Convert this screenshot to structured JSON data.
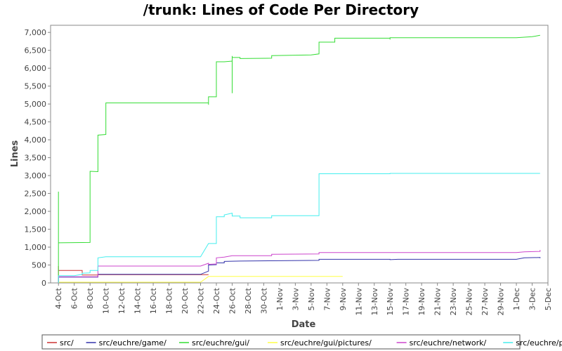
{
  "chart_data": {
    "type": "line",
    "title": "/trunk: Lines of Code Per Directory",
    "xlabel": "Date",
    "ylabel": "Lines",
    "ylim": [
      0,
      7200
    ],
    "xlim": [
      "2023-10-03",
      "2023-12-05"
    ],
    "x_ticks": [
      "4-Oct",
      "6-Oct",
      "8-Oct",
      "10-Oct",
      "12-Oct",
      "14-Oct",
      "16-Oct",
      "18-Oct",
      "20-Oct",
      "22-Oct",
      "24-Oct",
      "26-Oct",
      "28-Oct",
      "30-Oct",
      "1-Nov",
      "3-Nov",
      "5-Nov",
      "7-Nov",
      "9-Nov",
      "11-Nov",
      "13-Nov",
      "15-Nov",
      "17-Nov",
      "19-Nov",
      "21-Nov",
      "23-Nov",
      "25-Nov",
      "27-Nov",
      "29-Nov",
      "1-Dec",
      "3-Dec",
      "5-Dec"
    ],
    "y_ticks": [
      "0",
      "500",
      "1,000",
      "1,500",
      "2,000",
      "2,500",
      "3,000",
      "3,500",
      "4,000",
      "4,500",
      "5,000",
      "5,500",
      "6,000",
      "6,500",
      "7,000"
    ],
    "y_tick_values": [
      0,
      500,
      1000,
      1500,
      2000,
      2500,
      3000,
      3500,
      4000,
      4500,
      5000,
      5500,
      6000,
      6500,
      7000
    ],
    "grid": false,
    "legend_position": "bottom",
    "series": [
      {
        "name": "src/",
        "color": "#cc3333",
        "points": [
          [
            "2023-10-04",
            0
          ],
          [
            "2023-10-04",
            470
          ],
          [
            "2023-10-04",
            350
          ],
          [
            "2023-10-07",
            350
          ],
          [
            "2023-10-07",
            220
          ],
          [
            "2023-10-09",
            220
          ],
          [
            "2023-10-09",
            230
          ],
          [
            "2023-10-23",
            230
          ]
        ]
      },
      {
        "name": "src/euchre/game/",
        "color": "#3333aa",
        "points": [
          [
            "2023-10-04",
            0
          ],
          [
            "2023-10-04",
            160
          ],
          [
            "2023-10-09",
            160
          ],
          [
            "2023-10-09",
            240
          ],
          [
            "2023-10-22",
            240
          ],
          [
            "2023-10-23",
            330
          ],
          [
            "2023-10-23",
            500
          ],
          [
            "2023-10-24",
            510
          ],
          [
            "2023-10-24",
            560
          ],
          [
            "2023-10-25",
            560
          ],
          [
            "2023-10-25",
            600
          ],
          [
            "2023-10-27",
            610
          ],
          [
            "2023-11-01",
            620
          ],
          [
            "2023-11-06",
            630
          ],
          [
            "2023-11-06",
            660
          ],
          [
            "2023-11-15",
            660
          ],
          [
            "2023-11-15",
            650
          ],
          [
            "2023-11-16",
            660
          ],
          [
            "2023-12-01",
            660
          ],
          [
            "2023-12-02",
            700
          ],
          [
            "2023-12-04",
            710
          ],
          [
            "2023-12-04",
            690
          ]
        ]
      },
      {
        "name": "src/euchre/gui/",
        "color": "#33dd33",
        "points": [
          [
            "2023-10-04",
            0
          ],
          [
            "2023-10-04",
            2550
          ],
          [
            "2023-10-04",
            1120
          ],
          [
            "2023-10-08",
            1130
          ],
          [
            "2023-10-08",
            3120
          ],
          [
            "2023-10-09",
            3110
          ],
          [
            "2023-10-09",
            3150
          ],
          [
            "2023-10-09",
            4100
          ],
          [
            "2023-10-09",
            4130
          ],
          [
            "2023-10-10",
            4150
          ],
          [
            "2023-10-10",
            5030
          ],
          [
            "2023-10-23",
            5030
          ],
          [
            "2023-10-23",
            4980
          ],
          [
            "2023-10-23",
            5100
          ],
          [
            "2023-10-23",
            5200
          ],
          [
            "2023-10-24",
            5200
          ],
          [
            "2023-10-24",
            5900
          ],
          [
            "2023-10-24",
            6180
          ],
          [
            "2023-10-25",
            6180
          ],
          [
            "2023-10-26",
            6200
          ],
          [
            "2023-10-26",
            5300
          ],
          [
            "2023-10-26",
            6340
          ],
          [
            "2023-10-26",
            6300
          ],
          [
            "2023-10-27",
            6300
          ],
          [
            "2023-10-27",
            6270
          ],
          [
            "2023-10-31",
            6280
          ],
          [
            "2023-10-31",
            6350
          ],
          [
            "2023-11-05",
            6370
          ],
          [
            "2023-11-06",
            6400
          ],
          [
            "2023-11-06",
            6620
          ],
          [
            "2023-11-06",
            6730
          ],
          [
            "2023-11-08",
            6730
          ],
          [
            "2023-11-08",
            6840
          ],
          [
            "2023-11-15",
            6840
          ],
          [
            "2023-11-15",
            6800
          ],
          [
            "2023-11-15",
            6850
          ],
          [
            "2023-12-01",
            6850
          ],
          [
            "2023-12-03",
            6880
          ],
          [
            "2023-12-04",
            6920
          ]
        ]
      },
      {
        "name": "src/euchre/gui/pictures/",
        "color": "#ffff44",
        "points": [
          [
            "2023-10-04",
            0
          ],
          [
            "2023-10-04",
            20
          ],
          [
            "2023-10-22",
            20
          ],
          [
            "2023-10-23",
            180
          ],
          [
            "2023-11-09",
            180
          ]
        ]
      },
      {
        "name": "src/euchre/network/",
        "color": "#cc44cc",
        "points": [
          [
            "2023-10-04",
            0
          ],
          [
            "2023-10-04",
            170
          ],
          [
            "2023-10-09",
            170
          ],
          [
            "2023-10-09",
            470
          ],
          [
            "2023-10-22",
            470
          ],
          [
            "2023-10-23",
            550
          ],
          [
            "2023-10-23",
            520
          ],
          [
            "2023-10-24",
            530
          ],
          [
            "2023-10-24",
            700
          ],
          [
            "2023-10-25",
            720
          ],
          [
            "2023-10-26",
            760
          ],
          [
            "2023-10-31",
            760
          ],
          [
            "2023-10-31",
            800
          ],
          [
            "2023-11-06",
            810
          ],
          [
            "2023-11-06",
            850
          ],
          [
            "2023-12-01",
            850
          ],
          [
            "2023-12-02",
            870
          ],
          [
            "2023-12-04",
            880
          ],
          [
            "2023-12-04",
            920
          ]
        ]
      },
      {
        "name": "src/euchre/player/",
        "color": "#44eeee",
        "points": [
          [
            "2023-10-04",
            0
          ],
          [
            "2023-10-04",
            200
          ],
          [
            "2023-10-06",
            200
          ],
          [
            "2023-10-07",
            240
          ],
          [
            "2023-10-07",
            270
          ],
          [
            "2023-10-08",
            280
          ],
          [
            "2023-10-08",
            350
          ],
          [
            "2023-10-09",
            350
          ],
          [
            "2023-10-09",
            700
          ],
          [
            "2023-10-10",
            730
          ],
          [
            "2023-10-22",
            730
          ],
          [
            "2023-10-23",
            1100
          ],
          [
            "2023-10-24",
            1100
          ],
          [
            "2023-10-24",
            1350
          ],
          [
            "2023-10-24",
            1850
          ],
          [
            "2023-10-25",
            1850
          ],
          [
            "2023-10-25",
            1900
          ],
          [
            "2023-10-26",
            1950
          ],
          [
            "2023-10-26",
            1870
          ],
          [
            "2023-10-27",
            1870
          ],
          [
            "2023-10-27",
            1820
          ],
          [
            "2023-10-31",
            1820
          ],
          [
            "2023-10-31",
            1880
          ],
          [
            "2023-11-06",
            1880
          ],
          [
            "2023-11-06",
            2900
          ],
          [
            "2023-11-06",
            3050
          ],
          [
            "2023-11-15",
            3050
          ],
          [
            "2023-11-15",
            3060
          ],
          [
            "2023-12-04",
            3060
          ]
        ]
      }
    ]
  }
}
